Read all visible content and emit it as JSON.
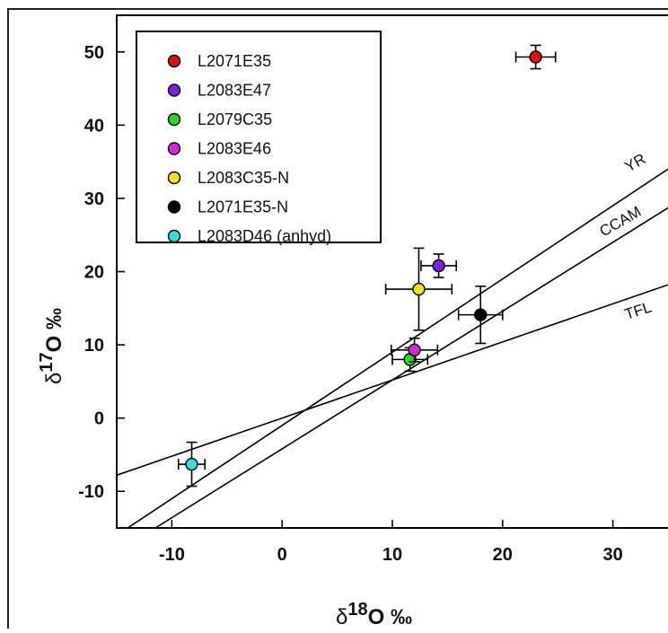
{
  "chart_data": {
    "type": "scatter",
    "xlim": [
      -15,
      35
    ],
    "ylim": [
      -15,
      55
    ],
    "x_ticks": [
      -10,
      0,
      10,
      20,
      30
    ],
    "y_ticks": [
      -10,
      0,
      10,
      20,
      30,
      40,
      50
    ],
    "x_tick_labels": [
      "-10",
      "0",
      "10",
      "20",
      "30"
    ],
    "y_tick_labels": [
      "-10",
      "0",
      "10",
      "20",
      "30",
      "40",
      "50"
    ],
    "xlabel": {
      "prefix": "δ",
      "sup": "18",
      "main": "O ‰"
    },
    "ylabel": {
      "prefix": "δ",
      "sup": "17",
      "main": "O ‰"
    },
    "legend_position": "top-left",
    "grid": false,
    "series": [
      {
        "name": "L2071E35",
        "color": "#e01010",
        "x": 23.0,
        "y": 49.3,
        "xerr": 1.8,
        "yerr": 1.6
      },
      {
        "name": "L2083E47",
        "color": "#7b22e0",
        "x": 14.2,
        "y": 20.8,
        "xerr": 1.6,
        "yerr": 1.6
      },
      {
        "name": "L2079C35",
        "color": "#22dd22",
        "x": 11.6,
        "y": 8.0,
        "xerr": 1.6,
        "yerr": 1.6
      },
      {
        "name": "L2083E46",
        "color": "#dd22dd",
        "x": 12.0,
        "y": 9.3,
        "xerr": 2.1,
        "yerr": 1.6
      },
      {
        "name": "L2083C35-N",
        "color": "#f5e01c",
        "x": 12.4,
        "y": 17.6,
        "xerr": 3.0,
        "yerr": 5.6
      },
      {
        "name": "L2071E35-N",
        "color": "#000000",
        "x": 18.0,
        "y": 14.1,
        "xerr": 2.0,
        "yerr": 3.9
      },
      {
        "name": "L2083D46 (anhyd)",
        "color": "#28e0e0",
        "x": -8.2,
        "y": -6.3,
        "xerr": 1.2,
        "yerr": 3.0
      }
    ],
    "reference_lines": [
      {
        "name": "YR",
        "slope": 1.0,
        "intercept": -1.0
      },
      {
        "name": "CCAM",
        "slope": 0.94,
        "intercept": -4.2
      },
      {
        "name": "TFL",
        "slope": 0.52,
        "intercept": 0.0
      }
    ]
  }
}
